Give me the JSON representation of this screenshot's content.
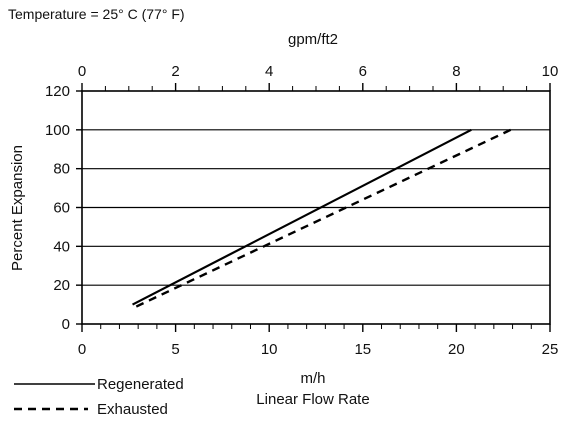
{
  "chart_data": {
    "type": "line",
    "note": "Temperature = 25° C (77° F)",
    "ylabel": "Percent Expansion",
    "x_bottom": {
      "label_line1": "m/h",
      "label_line2": "Linear Flow Rate",
      "range": [
        0,
        25
      ],
      "ticks": [
        0,
        5,
        10,
        15,
        20,
        25
      ]
    },
    "x_top": {
      "label": "gpm/ft2",
      "range": [
        0,
        10
      ],
      "ticks": [
        0,
        2,
        4,
        6,
        8,
        10
      ]
    },
    "y": {
      "range": [
        0,
        120
      ],
      "ticks": [
        0,
        20,
        40,
        60,
        80,
        100,
        120
      ]
    },
    "grid": true,
    "legend_position": "bottom-left",
    "series": [
      {
        "name": "Regenerated",
        "style": "solid",
        "color": "#000000",
        "x": [
          2.7,
          20.8
        ],
        "y": [
          10,
          100
        ]
      },
      {
        "name": "Exhausted",
        "style": "dashed",
        "color": "#000000",
        "x": [
          2.9,
          22.9
        ],
        "y": [
          9,
          100
        ]
      }
    ]
  }
}
